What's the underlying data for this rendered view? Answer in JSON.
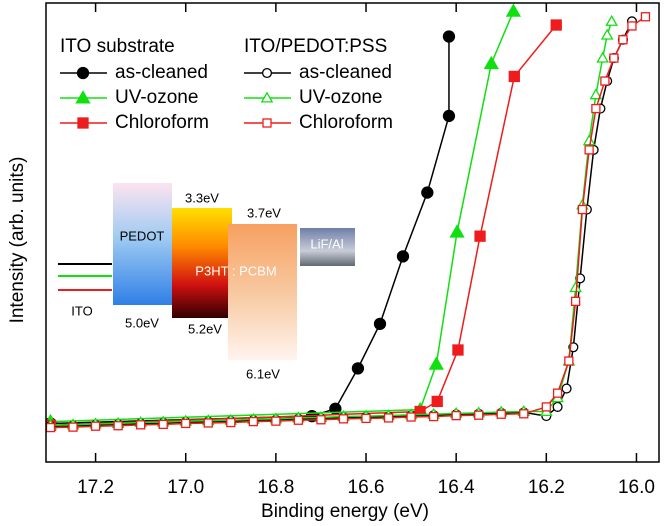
{
  "chart_data": {
    "type": "line",
    "x_label": "Binding energy (eV)",
    "y_label": "Intensity (arb. units)",
    "xlim": [
      17.31,
      15.95
    ],
    "xticks": [
      17.2,
      {
        "value": 17.0,
        "label": "17.0"
      },
      16.8,
      16.6,
      16.4,
      16.2,
      {
        "value": 16.0,
        "label": "16.0"
      }
    ],
    "ylim": [
      0,
      100
    ],
    "legend_titles": [
      "ITO substrate",
      "ITO/PEDOT:PSS"
    ],
    "annotations": [
      "PEDOT",
      "3.3eV",
      "3.7eV",
      "LiF/Al",
      "P3HT : PCBM",
      "ITO",
      "5.0eV",
      "5.2eV",
      "6.1eV"
    ],
    "series": [
      {
        "name": "as-cleaned",
        "color": "#000000",
        "marker": "circle",
        "filled": true,
        "x": [
          17.3,
          16.72,
          16.668,
          16.618,
          16.569,
          16.518,
          16.464,
          16.416,
          16.416
        ],
        "values": [
          8.4,
          10.0,
          11.6,
          20.4,
          30.1,
          44.8,
          58.7,
          75.4,
          92.7
        ]
      },
      {
        "name": "UV-ozone",
        "color": "#10e010",
        "marker": "triangle",
        "filled": true,
        "x": [
          17.3,
          16.48,
          16.444,
          16.398,
          16.322,
          16.273
        ],
        "values": [
          8.8,
          11.4,
          21.3,
          50.1,
          86.8,
          98.2
        ]
      },
      {
        "name": "Chloroform",
        "color": "#ee1c1c",
        "marker": "square",
        "filled": true,
        "x": [
          17.3,
          16.48,
          16.442,
          16.396,
          16.347,
          16.271,
          16.178
        ],
        "values": [
          8.0,
          11.0,
          13.2,
          24.4,
          49.2,
          84.0,
          95.2
        ]
      },
      {
        "name": "as-cleaned",
        "color": "#000000",
        "marker": "circle",
        "filled": false,
        "x": [
          17.3,
          17.25,
          17.2,
          17.15,
          17.1,
          17.05,
          17.0,
          16.95,
          16.9,
          16.85,
          16.8,
          16.75,
          16.7,
          16.65,
          16.6,
          16.55,
          16.5,
          16.45,
          16.4,
          16.35,
          16.3,
          16.25,
          16.2,
          16.175,
          16.155,
          16.14,
          16.125,
          16.11,
          16.095,
          16.08,
          16.065,
          16.05,
          16.03,
          16.01
        ],
        "values": [
          7.8,
          7.9,
          8.1,
          8.2,
          8.4,
          8.5,
          8.7,
          8.8,
          8.9,
          9.1,
          9.2,
          9.4,
          9.5,
          9.7,
          9.8,
          9.9,
          10.1,
          10.2,
          10.4,
          10.5,
          10.7,
          10.8,
          10,
          12,
          16,
          25,
          40,
          55,
          68,
          77,
          83,
          88,
          92,
          96
        ]
      },
      {
        "name": "UV-ozone",
        "color": "#10e010",
        "marker": "triangle",
        "filled": false,
        "x": [
          17.3,
          17.25,
          17.2,
          17.15,
          17.1,
          17.05,
          17.0,
          16.95,
          16.9,
          16.85,
          16.8,
          16.75,
          16.7,
          16.65,
          16.6,
          16.55,
          16.5,
          16.45,
          16.4,
          16.35,
          16.3,
          16.25,
          16.2,
          16.175,
          16.15,
          16.135,
          16.12,
          16.105,
          16.09,
          16.075,
          16.065,
          16.055
        ],
        "values": [
          8.0,
          8.1,
          8.3,
          8.4,
          8.6,
          8.7,
          8.9,
          9.0,
          9.1,
          9.3,
          9.4,
          9.6,
          9.7,
          9.9,
          10.0,
          10.1,
          10.3,
          10.4,
          10.6,
          10.7,
          10.9,
          11.0,
          11,
          14,
          22,
          38,
          56,
          70,
          80,
          88,
          93,
          96
        ]
      },
      {
        "name": "Chloroform",
        "color": "#ee1c1c",
        "marker": "square",
        "filled": false,
        "x": [
          17.3,
          17.25,
          17.2,
          17.15,
          17.1,
          17.05,
          17.0,
          16.95,
          16.9,
          16.85,
          16.8,
          16.75,
          16.7,
          16.65,
          16.6,
          16.55,
          16.5,
          16.45,
          16.4,
          16.35,
          16.3,
          16.25,
          16.2,
          16.175,
          16.15,
          16.135,
          16.12,
          16.105,
          16.09,
          16.07,
          16.05,
          16.03,
          16.01,
          15.98
        ],
        "values": [
          7.5,
          7.6,
          7.8,
          7.9,
          8.1,
          8.2,
          8.4,
          8.5,
          8.6,
          8.8,
          8.9,
          9.1,
          9.2,
          9.4,
          9.5,
          9.6,
          9.8,
          9.9,
          10.1,
          10.2,
          10.4,
          10.5,
          12,
          15,
          22,
          35,
          55,
          68,
          77,
          83,
          88,
          92,
          95,
          97
        ]
      }
    ]
  }
}
